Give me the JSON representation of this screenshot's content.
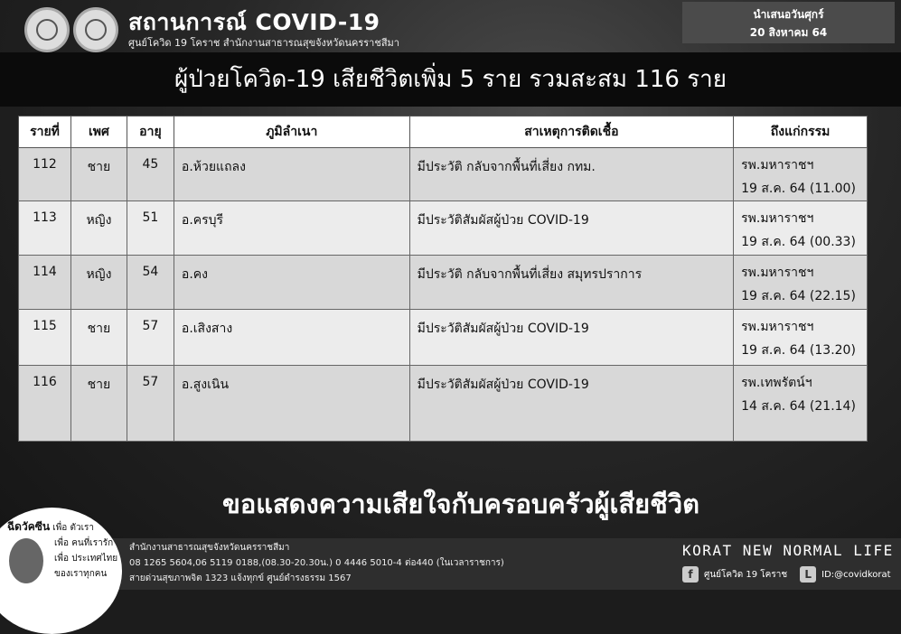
{
  "header": {
    "title": "สถานการณ์ COVID-19",
    "subtitle": "ศูนย์โควิด 19 โคราช สำนักงานสาธารณสุขจังหวัดนครราชสีมา",
    "date_label": "นำเสนอวันศุกร์",
    "date": "20 สิงหาคม 64"
  },
  "banner": "ผู้ป่วยโควิด-19 เสียชีวิตเพิ่ม 5 ราย รวมสะสม 116 ราย",
  "table": {
    "columns": [
      "รายที่",
      "เพศ",
      "อายุ",
      "ภูมิลำเนา",
      "สาเหตุการติดเชื้อ",
      "ถึงแก่กรรม"
    ],
    "rows": [
      [
        "112",
        "ชาย",
        "45",
        "อ.ห้วยแถลง",
        "มีประวัติ กลับจากพื้นที่เสี่ยง กทม.",
        "รพ.มหาราชฯ",
        "19 ส.ค. 64 (11.00)"
      ],
      [
        "113",
        "หญิง",
        "51",
        "อ.ครบุรี",
        "มีประวัติสัมผัสผู้ป่วย COVID-19",
        "รพ.มหาราชฯ",
        "19 ส.ค. 64 (00.33)"
      ],
      [
        "114",
        "หญิง",
        "54",
        "อ.คง",
        "มีประวัติ  กลับจากพื้นที่เสี่ยง สมุทรปราการ",
        "รพ.มหาราชฯ",
        "19 ส.ค. 64 (22.15)"
      ],
      [
        "115",
        "ชาย",
        "57",
        "อ.เสิงสาง",
        "มีประวัติสัมผัสผู้ป่วย COVID-19",
        "รพ.มหาราชฯ",
        "19 ส.ค. 64 (13.20)"
      ],
      [
        "116",
        "ชาย",
        "57",
        "อ.สูงเนิน",
        "มีประวัติสัมผัสผู้ป่วย COVID-19",
        "รพ.เทพรัตน์ฯ",
        "14 ส.ค. 64 (21.14)"
      ]
    ]
  },
  "condolence": "ขอแสดงความเสียใจกับครอบครัวผู้เสียชีวิต",
  "footer": {
    "vaccine_title": "ฉีดวัคซีน",
    "vaccine_lines": [
      "เพื่อ ตัวเรา",
      "เพื่อ คนที่เรารัก",
      "เพื่อ ประเทศไทย",
      "ของเราทุกคน"
    ],
    "org": "สำนักงานสาธารณสุขจังหวัดนครราชสีมา",
    "phones": "08 1265 5604,06 5119 0188,(08.30-20.30น.) 0 4446 5010-4 ต่อ440 (ในเวลาราชการ)",
    "hotline": "สายด่วนสุขภาพจิต 1323 แจ้งทุกข์ ศูนย์ดำรงธรรม 1567",
    "slogan": "KORAT NEW NORMAL LIFE",
    "facebook": "ศูนย์โควิด 19 โคราช",
    "line": "ID:@covidkorat"
  }
}
